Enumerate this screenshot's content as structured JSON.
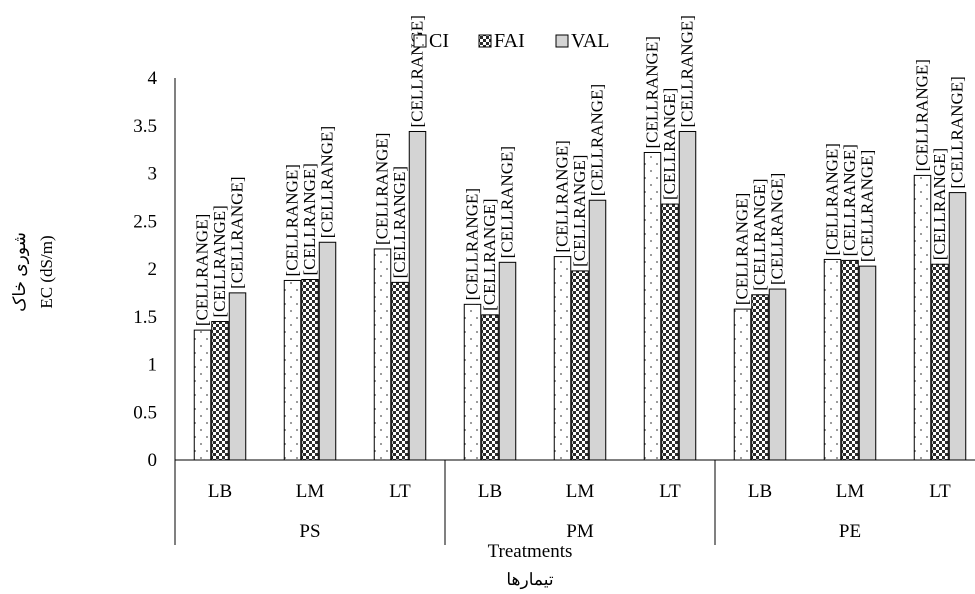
{
  "chart_data": {
    "type": "bar",
    "ylabel_fa": "شوری خاک",
    "ylabel": "EC (dS/m)",
    "xlabel": "Treatments",
    "xlabel_fa": "تیمارها",
    "ylim": [
      0,
      4
    ],
    "yticks": [
      "0",
      "0.5",
      "1",
      "1.5",
      "2",
      "2.5",
      "3",
      "3.5",
      "4"
    ],
    "grid": false,
    "legend_position": "top",
    "groups": [
      "PS",
      "PM",
      "PE"
    ],
    "categories": [
      "LB",
      "LM",
      "LT",
      "LB",
      "LM",
      "LT",
      "LB",
      "LM",
      "LT"
    ],
    "series": [
      {
        "name": "CI",
        "pattern": "dots",
        "color": "#ffffff",
        "values": [
          1.36,
          1.88,
          2.21,
          1.63,
          2.13,
          3.22,
          1.58,
          2.1,
          2.98
        ]
      },
      {
        "name": "FAI",
        "pattern": "check",
        "color": "#3a3a3a",
        "values": [
          1.45,
          1.89,
          1.86,
          1.52,
          1.98,
          2.68,
          1.73,
          2.09,
          2.05
        ]
      },
      {
        "name": "VAL",
        "pattern": "solid",
        "color": "#d4d4d4",
        "values": [
          1.75,
          2.28,
          3.44,
          2.07,
          2.72,
          3.44,
          1.79,
          2.03,
          2.8
        ]
      }
    ],
    "data_label_text": "[CELLRANGE]"
  }
}
